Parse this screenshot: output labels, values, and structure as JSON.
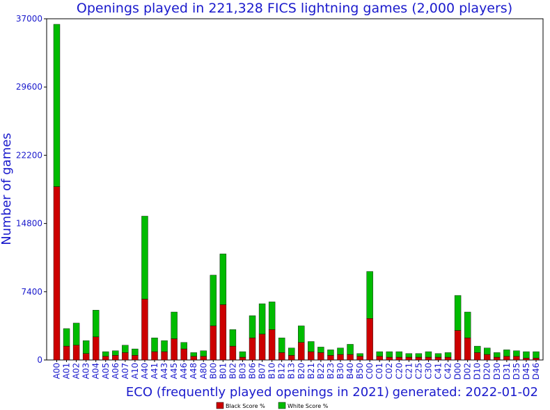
{
  "title": "Openings played in 221,328 FICS lightning games (2,000 players)",
  "generated": "generated: 2022-01-02",
  "chart_data": {
    "type": "bar",
    "stacked": true,
    "title": "Openings played in 221,328 FICS lightning games (2,000 players)",
    "xlabel": "ECO (frequently played openings in 2021)",
    "ylabel": "Number of games",
    "ylim": [
      0,
      37000
    ],
    "yticks": [
      0,
      7400,
      14800,
      22200,
      29600,
      37000
    ],
    "ytick_labels": [
      "0",
      "7400",
      "14800",
      "22200",
      "29600",
      "37000"
    ],
    "grid": false,
    "legend_position": "bottom-center",
    "categories": [
      "A00",
      "A01",
      "A02",
      "A03",
      "A04",
      "A05",
      "A06",
      "A07",
      "A10",
      "A40",
      "A41",
      "A43",
      "A45",
      "A46",
      "A48",
      "A80",
      "B00",
      "B01",
      "B02",
      "B03",
      "B06",
      "B07",
      "B10",
      "B12",
      "B13",
      "B20",
      "B21",
      "B22",
      "B23",
      "B30",
      "B40",
      "B50",
      "C00",
      "C01",
      "C02",
      "C20",
      "C21",
      "C25",
      "C30",
      "C41",
      "C42",
      "D00",
      "D02",
      "D10",
      "D20",
      "D30",
      "D31",
      "D35",
      "D45",
      "D46"
    ],
    "series": [
      {
        "name": "Black Score %",
        "color": "#cc0000",
        "values": [
          18800,
          1500,
          1600,
          700,
          2500,
          400,
          500,
          800,
          500,
          6600,
          900,
          900,
          2300,
          1200,
          400,
          400,
          3700,
          6000,
          1500,
          300,
          2400,
          2800,
          3300,
          800,
          500,
          1900,
          900,
          800,
          500,
          600,
          600,
          400,
          4500,
          400,
          300,
          300,
          300,
          300,
          300,
          300,
          300,
          3200,
          2400,
          800,
          600,
          300,
          400,
          400,
          200,
          200
        ]
      },
      {
        "name": "White Score %",
        "color": "#00bb00",
        "values": [
          17600,
          1900,
          2400,
          1400,
          2900,
          500,
          500,
          800,
          700,
          9000,
          1500,
          1200,
          2900,
          700,
          400,
          600,
          5500,
          5500,
          1800,
          600,
          2400,
          3300,
          3000,
          1600,
          800,
          1800,
          1100,
          600,
          600,
          700,
          1100,
          300,
          5100,
          500,
          600,
          600,
          400,
          400,
          600,
          400,
          500,
          3800,
          2800,
          700,
          700,
          500,
          700,
          600,
          700,
          700
        ]
      }
    ]
  }
}
